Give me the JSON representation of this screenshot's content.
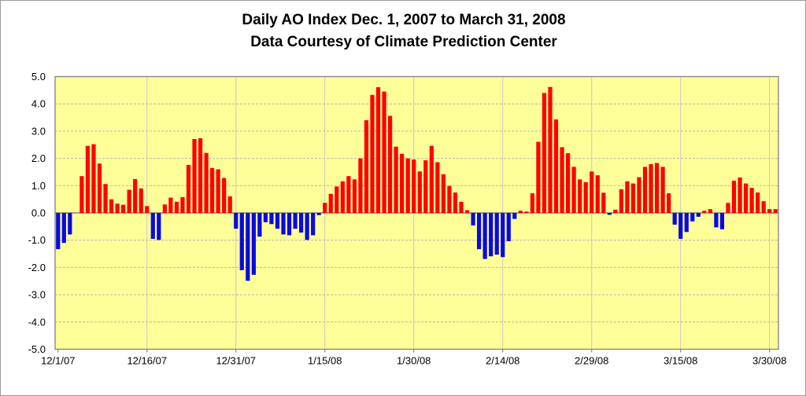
{
  "window": {
    "background": "#FFFFFF",
    "frame_border": "#9A9A9A"
  },
  "chart_data": {
    "type": "bar",
    "title": "Daily AO Index Dec. 1, 2007 to March 31, 2008",
    "subtitle": "Data Courtesy of Climate Prediction Center",
    "series_name": "Daily AO Index",
    "start_date": "2007-12-01",
    "end_date": "2008-03-31",
    "x_tick_labels": [
      "12/1/07",
      "12/16/07",
      "12/31/07",
      "1/15/08",
      "1/30/08",
      "2/14/08",
      "2/29/08",
      "3/15/08",
      "3/30/08"
    ],
    "x_tick_indices": [
      0,
      15,
      30,
      45,
      60,
      75,
      90,
      105,
      120
    ],
    "y_tick_labels": [
      "5.0",
      "4.0",
      "3.0",
      "2.0",
      "1.0",
      "0.0",
      "-1.0",
      "-2.0",
      "-3.0",
      "-4.0",
      "-5.0"
    ],
    "ylim": [
      -5,
      5
    ],
    "grid": "horizontal dashed every 1.0, vertical at labeled dates, solid zero line",
    "legend": "none",
    "values": [
      -1.33,
      -1.1,
      -0.79,
      0.0,
      1.35,
      2.46,
      2.52,
      1.81,
      1.06,
      0.5,
      0.34,
      0.3,
      0.85,
      1.24,
      0.9,
      0.25,
      -0.95,
      -0.99,
      0.31,
      0.56,
      0.41,
      0.58,
      1.76,
      2.71,
      2.74,
      2.2,
      1.65,
      1.6,
      1.28,
      0.61,
      -0.58,
      -2.1,
      -2.49,
      -2.27,
      -0.87,
      -0.34,
      -0.41,
      -0.58,
      -0.79,
      -0.82,
      -0.58,
      -0.72,
      -0.99,
      -0.82,
      -0.08,
      0.37,
      0.7,
      0.97,
      1.16,
      1.35,
      1.23,
      2.0,
      3.4,
      4.33,
      4.61,
      4.45,
      3.56,
      2.43,
      2.17,
      2.0,
      1.96,
      1.52,
      1.93,
      2.46,
      1.86,
      1.42,
      0.99,
      0.75,
      0.41,
      0.1,
      -0.46,
      -1.33,
      -1.69,
      -1.59,
      -1.53,
      -1.62,
      -1.04,
      -0.22,
      0.08,
      0.05,
      0.72,
      2.61,
      4.4,
      4.62,
      3.43,
      2.41,
      2.19,
      1.69,
      1.23,
      1.13,
      1.52,
      1.38,
      0.74,
      -0.07,
      0.12,
      0.87,
      1.16,
      1.08,
      1.31,
      1.69,
      1.79,
      1.83,
      1.69,
      0.72,
      -0.43,
      -0.95,
      -0.7,
      -0.31,
      -0.14,
      0.08,
      0.14,
      -0.53,
      -0.6,
      0.37,
      1.18,
      1.3,
      1.08,
      0.92,
      0.75,
      0.43,
      0.14,
      0.14
    ],
    "colors": {
      "positive_bar": "#FF0000",
      "negative_bar": "#0A0AE0",
      "plot_background": "#FFFF99",
      "plot_border": "#808080",
      "h_gridline": "#B4B4B4",
      "v_gridline": "#C8C8C8",
      "zero_line": "#808080",
      "tick": "#707070",
      "label_text": "#000000"
    }
  }
}
